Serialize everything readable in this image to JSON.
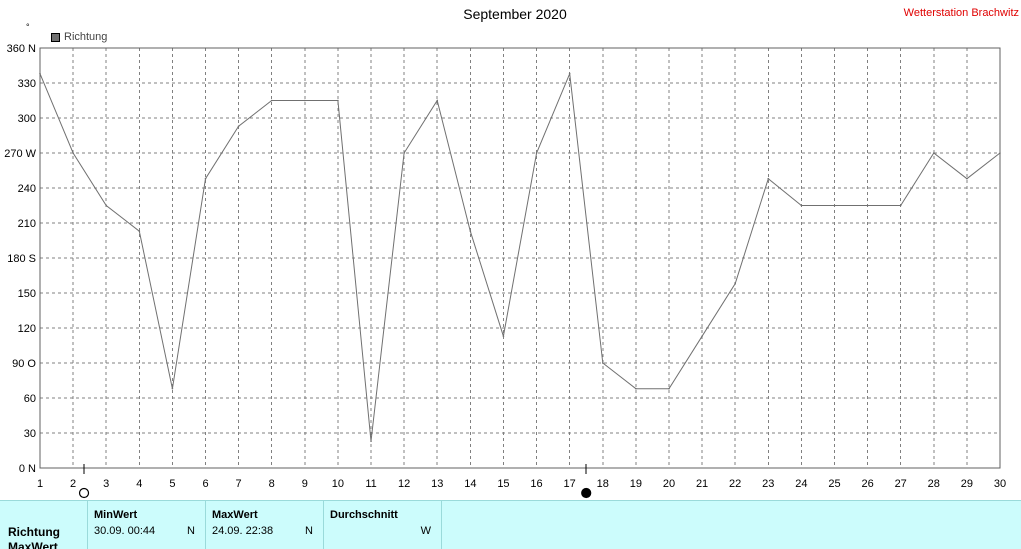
{
  "header": {
    "title": "September 2020",
    "station": "Wetterstation Brachwitz",
    "unit": "°"
  },
  "legend": {
    "label": "Richtung"
  },
  "colors": {
    "line": "#707070",
    "grid": "#808080",
    "station": "#e00000",
    "table_bg": "#ccfcfc"
  },
  "chart_data": {
    "type": "line",
    "title": "September 2020",
    "xlabel": "",
    "ylabel": "",
    "xlim": [
      1,
      30
    ],
    "ylim": [
      0,
      360
    ],
    "grid": true,
    "legend_position": "top-left",
    "x_ticks": [
      "1",
      "2",
      "3",
      "4",
      "5",
      "6",
      "7",
      "8",
      "9",
      "10",
      "11",
      "12",
      "13",
      "14",
      "15",
      "16",
      "17",
      "18",
      "19",
      "20",
      "21",
      "22",
      "23",
      "24",
      "25",
      "26",
      "27",
      "28",
      "29",
      "30"
    ],
    "y_ticks": [
      {
        "value": 0,
        "label": "0 N"
      },
      {
        "value": 30,
        "label": "30"
      },
      {
        "value": 60,
        "label": "60"
      },
      {
        "value": 90,
        "label": "90 O"
      },
      {
        "value": 120,
        "label": "120"
      },
      {
        "value": 150,
        "label": "150"
      },
      {
        "value": 180,
        "label": "180 S"
      },
      {
        "value": 210,
        "label": "210"
      },
      {
        "value": 240,
        "label": "240"
      },
      {
        "value": 270,
        "label": "270 W"
      },
      {
        "value": 300,
        "label": "300"
      },
      {
        "value": 330,
        "label": "330"
      },
      {
        "value": 360,
        "label": "360 N"
      }
    ],
    "series": [
      {
        "name": "Richtung",
        "x": [
          1,
          2,
          3,
          4,
          5,
          6,
          7,
          8,
          9,
          10,
          11,
          12,
          13,
          14,
          15,
          16,
          17,
          18,
          19,
          20,
          21,
          22,
          23,
          24,
          25,
          26,
          27,
          28,
          29,
          30
        ],
        "values": [
          338,
          270,
          225,
          203,
          68,
          248,
          293,
          315,
          315,
          315,
          23,
          270,
          315,
          203,
          113,
          270,
          338,
          90,
          68,
          68,
          113,
          158,
          248,
          225,
          225,
          225,
          225,
          270,
          248,
          270
        ]
      }
    ],
    "moon_markers": [
      {
        "x": 2.33,
        "phase": "full"
      },
      {
        "x": 17.5,
        "phase": "new"
      }
    ]
  },
  "table": {
    "row_labels": [
      "Richtung",
      "MaxWert"
    ],
    "min": {
      "header": "MinWert",
      "date": "30.09.  00:44",
      "dir": "N"
    },
    "max": {
      "header": "MaxWert",
      "date": "24.09.  22:38",
      "dir": "N"
    },
    "avg": {
      "header": "Durchschnitt",
      "dir": "W"
    }
  }
}
